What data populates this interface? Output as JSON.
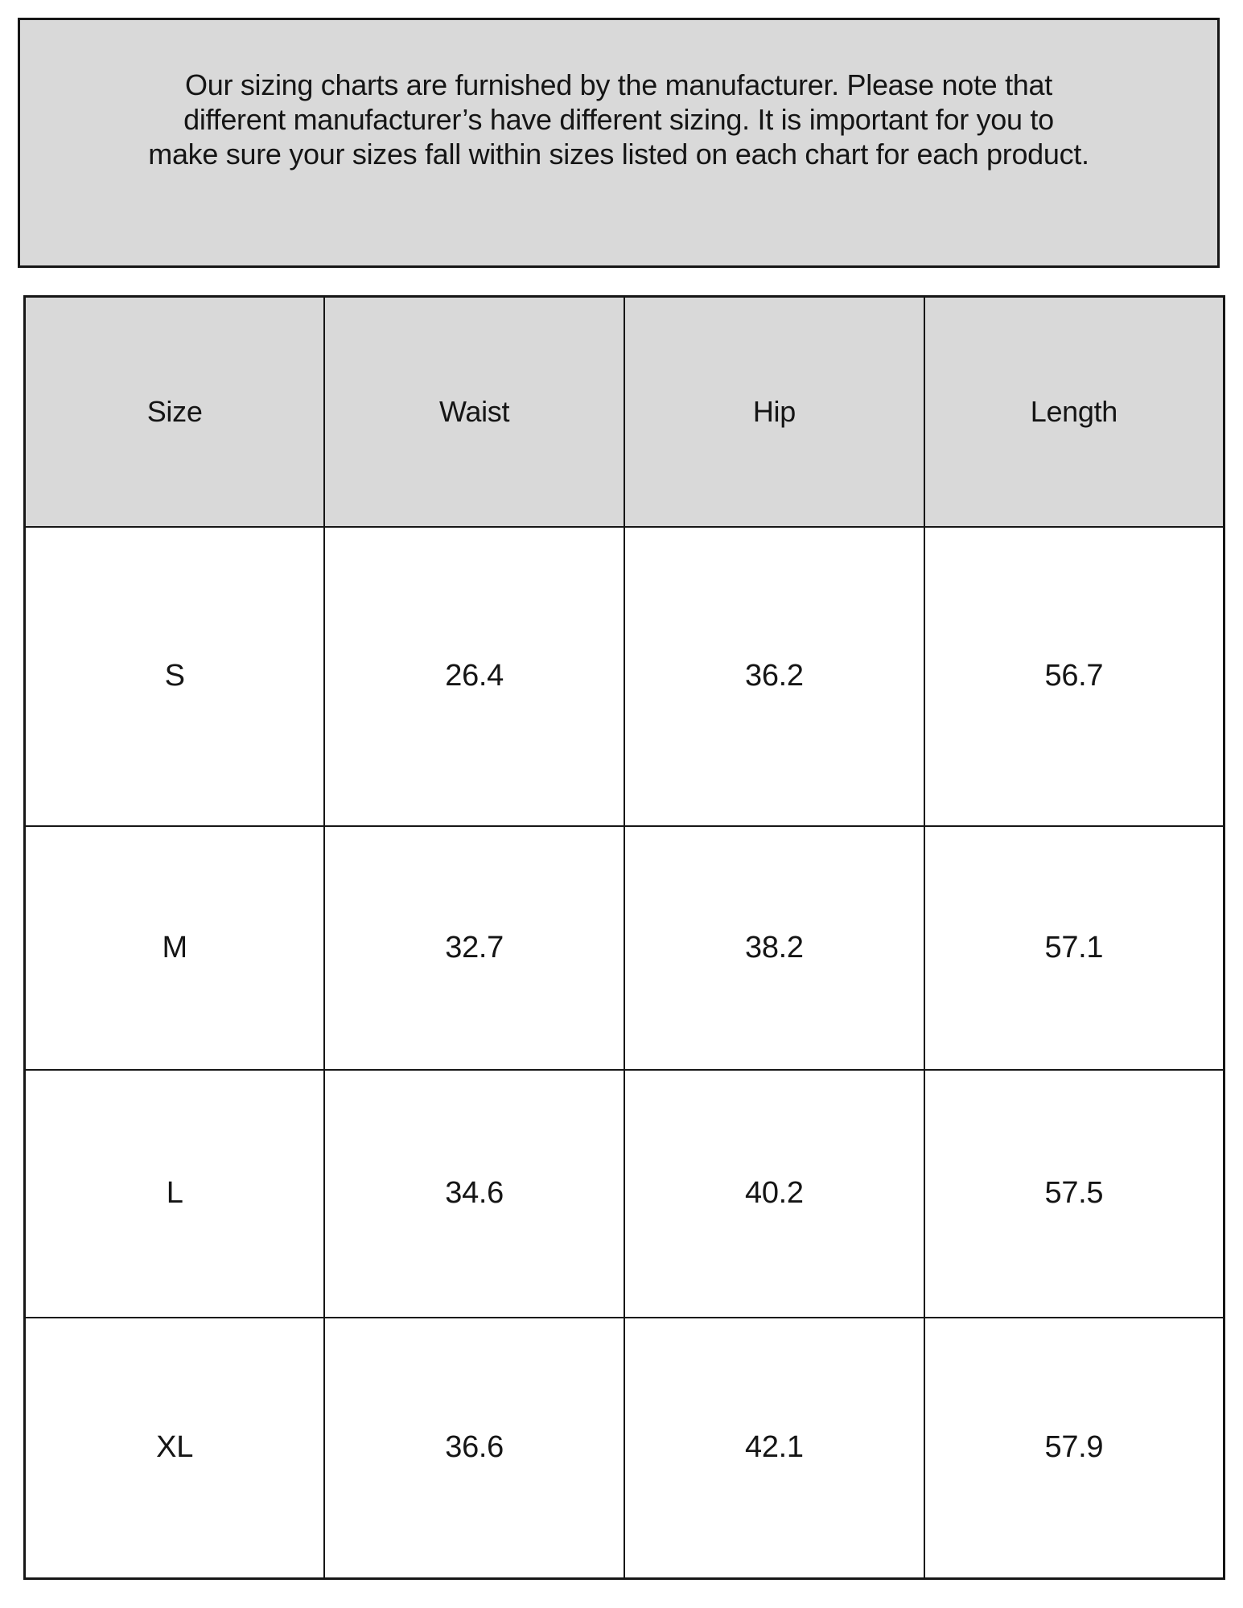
{
  "notice": {
    "lines": [
      "Our sizing charts are furnished by the manufacturer. Please note that",
      "different manufacturer’s have different sizing. It is important for you to",
      "make sure your sizes fall within sizes listed on each chart for each product."
    ]
  },
  "chart_data": {
    "type": "table",
    "columns": [
      "Size",
      "Waist",
      "Hip",
      "Length"
    ],
    "rows": [
      [
        "S",
        "26.4",
        "36.2",
        "56.7"
      ],
      [
        "M",
        "32.7",
        "38.2",
        "57.1"
      ],
      [
        "L",
        "34.6",
        "40.2",
        "57.5"
      ],
      [
        "XL",
        "36.6",
        "42.1",
        "57.9"
      ]
    ]
  },
  "colors": {
    "panel_fill": "#d9d9d9",
    "border": "#161616",
    "text": "#151515",
    "page_background": "#ffffff"
  }
}
